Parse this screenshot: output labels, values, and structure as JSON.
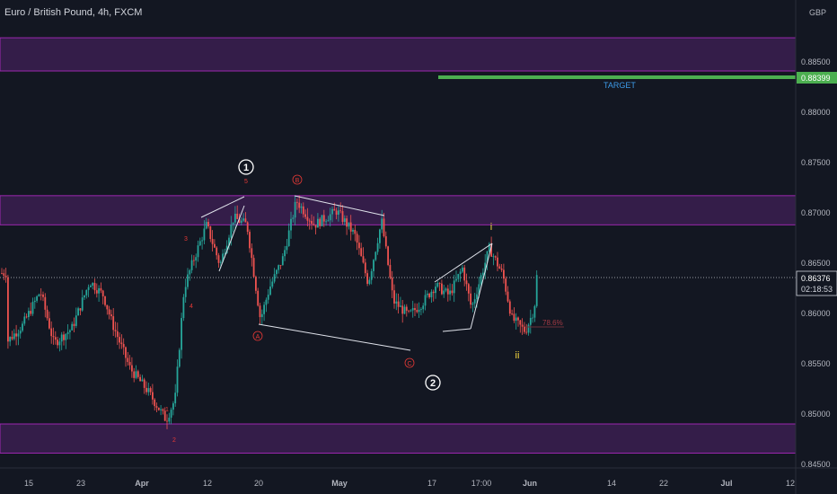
{
  "chart_data": {
    "type": "candlestick",
    "title": "Euro / British Pound, 4h, FXCM",
    "currency": "GBP",
    "ylim": [
      0.844,
      0.8908
    ],
    "y_ticks": [
      {
        "value": 0.885,
        "label": "0.88500"
      },
      {
        "value": 0.88,
        "label": "0.88000"
      },
      {
        "value": 0.875,
        "label": "0.87500"
      },
      {
        "value": 0.87,
        "label": "0.87000"
      },
      {
        "value": 0.865,
        "label": "0.86500"
      },
      {
        "value": 0.86,
        "label": "0.86000"
      },
      {
        "value": 0.855,
        "label": "0.85500"
      },
      {
        "value": 0.85,
        "label": "0.85000"
      },
      {
        "value": 0.845,
        "label": "0.84500"
      }
    ],
    "x_ticks": [
      "15",
      "23",
      "Apr",
      "12",
      "20",
      "May",
      "17",
      "17:00",
      "Jun",
      "14",
      "22",
      "Jul",
      "12"
    ],
    "last_price": "0.86376",
    "countdown": "02:18:53",
    "target": {
      "label": "TARGET",
      "price": "0.88399"
    },
    "fib_label": "78.6%",
    "zones": [
      {
        "from": 0.8841,
        "to": 0.8874
      },
      {
        "from": 0.8688,
        "to": 0.8717
      },
      {
        "from": 0.8461,
        "to": 0.849
      }
    ],
    "wave_labels": {
      "major": [
        "1",
        "2"
      ],
      "minor": [
        "5",
        "B",
        "3",
        "4",
        "A",
        "C",
        "2",
        "1"
      ],
      "sub": [
        "i",
        "ii"
      ]
    },
    "colors": {
      "background": "#131722",
      "up": "#26a69a",
      "down": "#ef5350",
      "zone_fill": "#3b1f50",
      "zone_border": "#9c27b0",
      "target": "#4caf50",
      "axis_text": "#b2b5be",
      "wave_red": "#e53935",
      "wave_yellow": "#f2d43d"
    }
  }
}
